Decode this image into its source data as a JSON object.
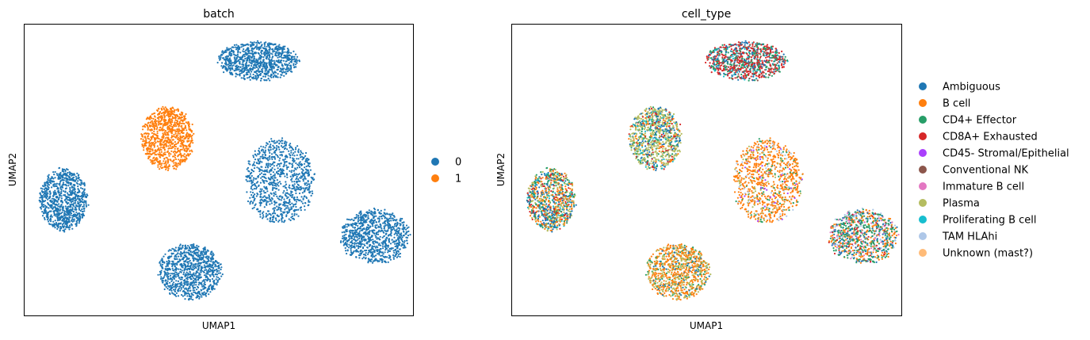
{
  "chart_data": [
    {
      "type": "scatter",
      "title": "batch",
      "xlabel": "UMAP1",
      "ylabel": "UMAP2",
      "ticks": "none",
      "legend_placement": "right",
      "legend": [
        {
          "label": "0",
          "color": "#1f77b4"
        },
        {
          "label": "1",
          "color": "#ff7f0e"
        }
      ],
      "clusters": [
        {
          "center": [
            14.0,
            14.8
          ],
          "extent": [
            2.7,
            1.2
          ],
          "group": "0"
        },
        {
          "center": [
            8.2,
            10.2
          ],
          "extent": [
            1.75,
            1.95
          ],
          "group": "1"
        },
        {
          "center": [
            1.5,
            6.5
          ],
          "extent": [
            1.6,
            1.9
          ],
          "group": "0"
        },
        {
          "center": [
            15.4,
            7.6
          ],
          "extent": [
            2.3,
            2.6
          ],
          "group": "0"
        },
        {
          "center": [
            21.5,
            4.3
          ],
          "extent": [
            2.3,
            1.7
          ],
          "group": "0"
        },
        {
          "center": [
            9.6,
            2.2
          ],
          "extent": [
            2.1,
            1.7
          ],
          "group": "0"
        }
      ]
    },
    {
      "type": "scatter",
      "title": "cell_type",
      "xlabel": "UMAP1",
      "ylabel": "UMAP2",
      "ticks": "none",
      "legend_placement": "right",
      "legend": [
        {
          "label": "Ambiguous",
          "color": "#1f77b4"
        },
        {
          "label": "B cell",
          "color": "#ff7f0e"
        },
        {
          "label": "CD4+ Effector",
          "color": "#279e68"
        },
        {
          "label": "CD8A+ Exhausted",
          "color": "#d62728"
        },
        {
          "label": "CD45- Stromal/Epithelial",
          "color": "#aa40fc"
        },
        {
          "label": "Conventional NK",
          "color": "#8c564b"
        },
        {
          "label": "Immature B cell",
          "color": "#e377c2"
        },
        {
          "label": "Plasma",
          "color": "#b5bd61"
        },
        {
          "label": "Proliferating B cell",
          "color": "#17becf"
        },
        {
          "label": "TAM HLAhi",
          "color": "#aec7e8"
        },
        {
          "label": "Unknown (mast?)",
          "color": "#ffbb78"
        }
      ]
    }
  ]
}
